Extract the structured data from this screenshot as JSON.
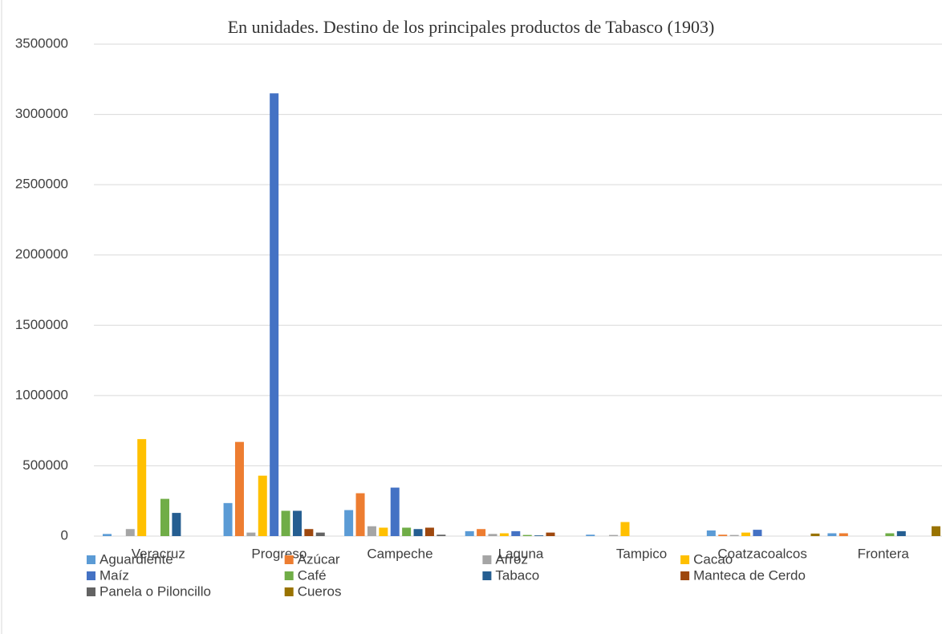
{
  "chart_data": {
    "type": "bar",
    "title": "En unidades. Destino de los principales productos de Tabasco (1903)",
    "categories": [
      "Veracruz",
      "Progreso",
      "Campeche",
      "Laguna",
      "Tampico",
      "Coatzacoalcos",
      "Frontera"
    ],
    "series": [
      {
        "name": "Aguardiente",
        "color": "#5b9bd5",
        "values": [
          15000,
          235000,
          185000,
          35000,
          10000,
          40000,
          20000
        ]
      },
      {
        "name": "Azúcar",
        "color": "#ed7d31",
        "values": [
          0,
          670000,
          305000,
          50000,
          0,
          10000,
          20000
        ]
      },
      {
        "name": "Arroz",
        "color": "#a5a5a5",
        "values": [
          50000,
          25000,
          70000,
          15000,
          8000,
          8000,
          0
        ]
      },
      {
        "name": "Cacao",
        "color": "#ffc000",
        "values": [
          690000,
          430000,
          60000,
          20000,
          100000,
          25000,
          0
        ]
      },
      {
        "name": "Maíz",
        "color": "#4472c4",
        "values": [
          0,
          3150000,
          345000,
          35000,
          0,
          45000,
          0
        ]
      },
      {
        "name": "Café",
        "color": "#70ad47",
        "values": [
          265000,
          180000,
          60000,
          8000,
          0,
          0,
          20000
        ]
      },
      {
        "name": "Tabaco",
        "color": "#255e91",
        "values": [
          165000,
          180000,
          50000,
          5000,
          0,
          0,
          35000
        ]
      },
      {
        "name": "Manteca de Cerdo",
        "color": "#9e480e",
        "values": [
          0,
          50000,
          60000,
          25000,
          0,
          0,
          0
        ]
      },
      {
        "name": "Panela o Piloncillo",
        "color": "#636363",
        "values": [
          0,
          25000,
          10000,
          0,
          0,
          0,
          0
        ]
      },
      {
        "name": "Cueros",
        "color": "#997300",
        "values": [
          0,
          0,
          0,
          0,
          0,
          18000,
          70000
        ]
      }
    ],
    "ylim": [
      0,
      3500000
    ],
    "yticks": [
      0,
      500000,
      1000000,
      1500000,
      2000000,
      2500000,
      3000000,
      3500000
    ],
    "grid": true,
    "legend": "bottom"
  }
}
